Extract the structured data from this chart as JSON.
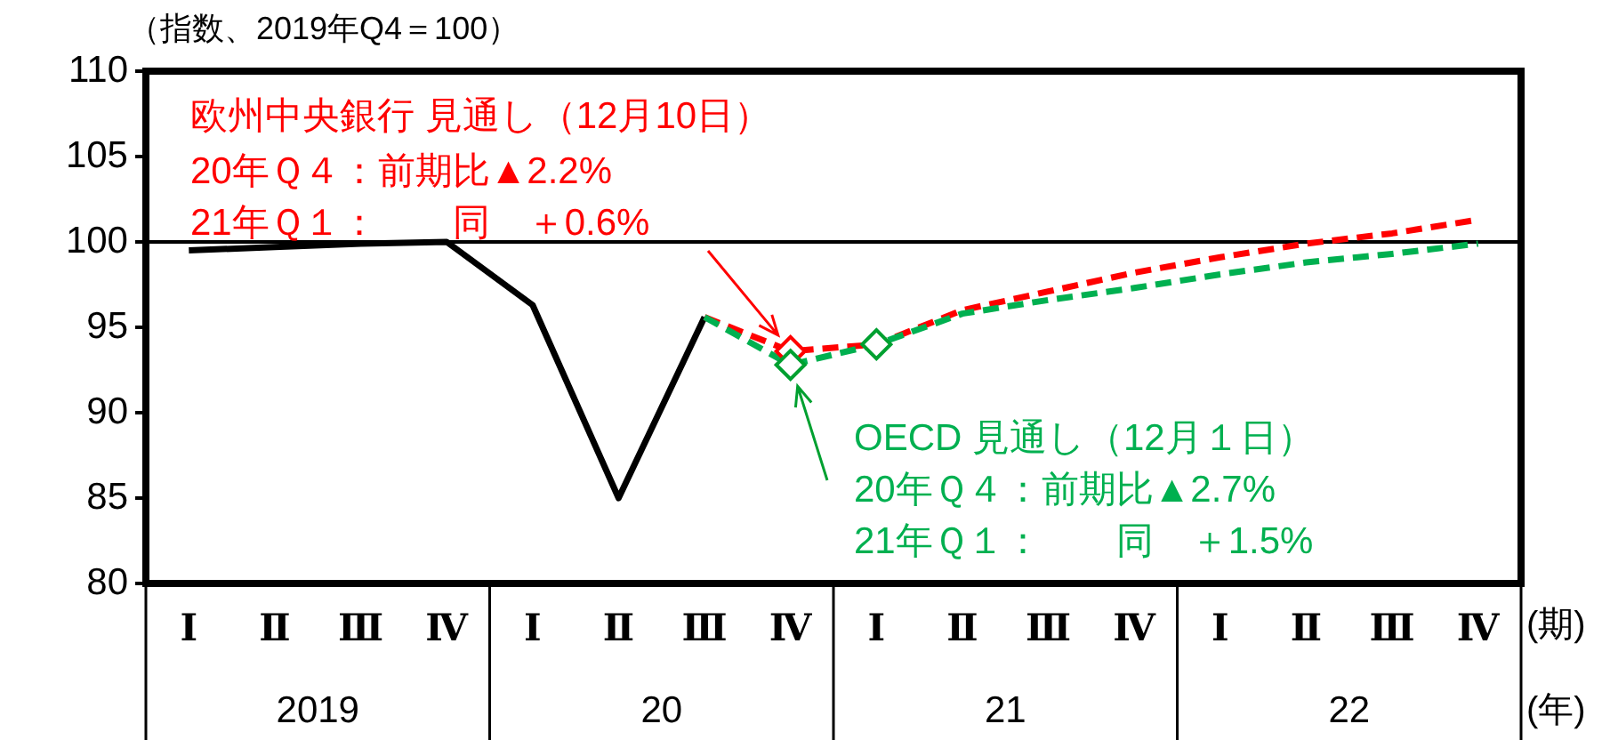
{
  "chart_data": {
    "type": "line",
    "ylabel": "（指数、2019年Q4＝100）",
    "categories": [
      "Ⅰ",
      "Ⅱ",
      "Ⅲ",
      "Ⅳ",
      "Ⅰ",
      "Ⅱ",
      "Ⅲ",
      "Ⅳ",
      "Ⅰ",
      "Ⅱ",
      "Ⅲ",
      "Ⅳ",
      "Ⅰ",
      "Ⅱ",
      "Ⅲ",
      "Ⅳ"
    ],
    "series": [
      {
        "type": "line",
        "color": "#000000",
        "line_style": "solid",
        "values": [
          99.5,
          99.7,
          99.9,
          100,
          96.3,
          85,
          95.6,
          null,
          null,
          null,
          null,
          null,
          null,
          null,
          null,
          null
        ]
      },
      {
        "type": "line",
        "color": "#ff0000",
        "line_style": "dashed",
        "values": [
          null,
          null,
          null,
          null,
          null,
          null,
          95.6,
          93.6,
          94.0,
          96.0,
          97.1,
          98.2,
          99.1,
          99.9,
          100.5,
          101.3
        ]
      },
      {
        "type": "line",
        "color": "#00b050",
        "line_style": "dashed",
        "values": [
          null,
          null,
          null,
          null,
          null,
          null,
          95.6,
          92.8,
          94.0,
          95.8,
          96.6,
          97.3,
          98.1,
          98.8,
          99.3,
          99.9
        ]
      },
      {
        "type": "scatter",
        "color": "#ff0000",
        "marker": "diamond",
        "values": [
          null,
          null,
          null,
          null,
          null,
          null,
          null,
          93.6,
          null,
          null,
          null,
          null,
          null,
          null,
          null,
          null
        ]
      },
      {
        "type": "scatter",
        "color": "#00a030",
        "marker": "diamond",
        "values": [
          null,
          null,
          null,
          null,
          null,
          null,
          null,
          92.8,
          94.0,
          null,
          null,
          null,
          null,
          null,
          null,
          null
        ]
      }
    ],
    "ylim": [
      80,
      110
    ],
    "yticks": [
      80,
      85,
      90,
      95,
      100,
      105,
      110
    ],
    "grid": false,
    "legend": false,
    "ref_lines": [
      {
        "axis": "y",
        "value": 100,
        "color": "#000000"
      }
    ],
    "annotations": [
      "2019",
      "20",
      "21",
      "22",
      "(期)",
      "(年)",
      "欧州中央銀行 見通し（12月10日）",
      "20年Ｑ４：前期比▲2.2%",
      "21年Ｑ１：　　同　＋0.6%",
      "OECD 見通し（12月１日）",
      "20年Ｑ４：前期比▲2.7%",
      "21年Ｑ１：　　同　＋1.5%"
    ]
  }
}
